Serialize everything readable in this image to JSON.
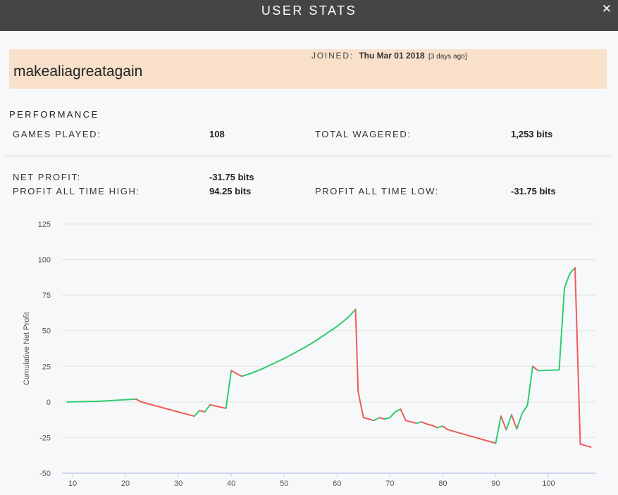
{
  "window": {
    "title": "USER STATS"
  },
  "user": {
    "name": "makealiagreatagain",
    "joined_label": "JOINED:",
    "joined_date": "Thu Mar 01 2018",
    "joined_ago": "[3 days ago]"
  },
  "performance": {
    "title": "PERFORMANCE",
    "games_played_label": "GAMES PLAYED:",
    "games_played": "108",
    "total_wagered_label": "TOTAL WAGERED:",
    "total_wagered": "1,253 bits",
    "net_profit_label": "NET PROFIT:",
    "net_profit": "-31.75 bits",
    "ath_label": "PROFIT ALL TIME HIGH:",
    "ath": "94.25 bits",
    "atl_label": "PROFIT ALL TIME LOW:",
    "atl": "-31.75 bits"
  },
  "colors": {
    "gain": "#2ecc71",
    "loss": "#f05a5a",
    "header": "#454545",
    "user_bg": "#f9e0cb"
  },
  "chart_data": {
    "type": "line",
    "ylabel": "Cumulative Net Profit",
    "xlabel": "",
    "ylim": [
      -50,
      125
    ],
    "xlim": [
      8,
      109
    ],
    "yticks": [
      -50,
      -25,
      0,
      25,
      50,
      75,
      100,
      125
    ],
    "xticks": [
      10,
      20,
      30,
      40,
      50,
      60,
      70,
      80,
      90,
      100
    ],
    "grid": true,
    "up_color": "#2ecc71",
    "down_color": "#f05a5a",
    "points": [
      [
        9,
        0
      ],
      [
        15,
        0.5
      ],
      [
        22,
        2
      ],
      [
        23,
        0
      ],
      [
        33,
        -10
      ],
      [
        34,
        -6
      ],
      [
        35,
        -7
      ],
      [
        36,
        -2
      ],
      [
        39,
        -4.5
      ],
      [
        40,
        22
      ],
      [
        42,
        18
      ],
      [
        44,
        20.5
      ],
      [
        46,
        23.5
      ],
      [
        48,
        27
      ],
      [
        50,
        30.5
      ],
      [
        52,
        34.5
      ],
      [
        54,
        38.5
      ],
      [
        56,
        43
      ],
      [
        58,
        48
      ],
      [
        60,
        53
      ],
      [
        62,
        59
      ],
      [
        63.5,
        65
      ],
      [
        64,
        7
      ],
      [
        65,
        -11
      ],
      [
        67,
        -13
      ],
      [
        68,
        -11
      ],
      [
        69,
        -12
      ],
      [
        70,
        -11
      ],
      [
        71,
        -7
      ],
      [
        72,
        -5
      ],
      [
        73,
        -13
      ],
      [
        75,
        -15
      ],
      [
        76,
        -14
      ],
      [
        77,
        -15.5
      ],
      [
        78,
        -16.5
      ],
      [
        79,
        -18
      ],
      [
        80,
        -17
      ],
      [
        81,
        -19.5
      ],
      [
        90,
        -29
      ],
      [
        91,
        -10
      ],
      [
        92,
        -19.5
      ],
      [
        93,
        -9
      ],
      [
        94,
        -19
      ],
      [
        95,
        -8
      ],
      [
        96,
        -2.5
      ],
      [
        97,
        25
      ],
      [
        98,
        22
      ],
      [
        102,
        22.5
      ],
      [
        103,
        80
      ],
      [
        104,
        90
      ],
      [
        105,
        94.25
      ],
      [
        106,
        -29.5
      ],
      [
        108,
        -31.75
      ]
    ]
  }
}
